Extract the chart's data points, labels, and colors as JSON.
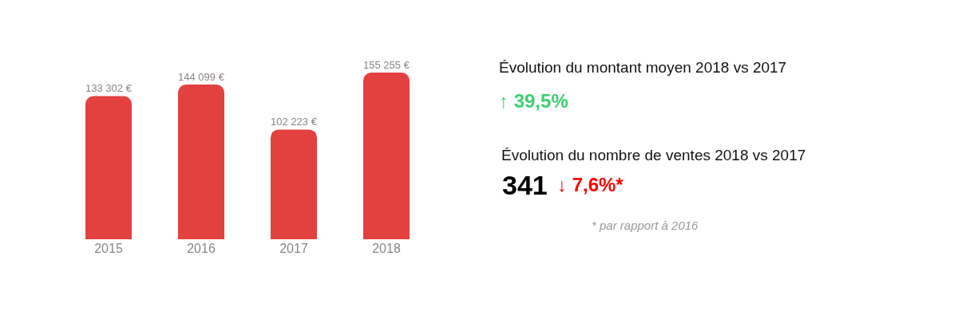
{
  "chart_data": {
    "type": "bar",
    "categories": [
      "2015",
      "2016",
      "2017",
      "2018"
    ],
    "values": [
      133302,
      144099,
      102223,
      155255
    ],
    "value_labels": [
      "133 302 €",
      "144 099 €",
      "102 223 €",
      "155 255 €"
    ],
    "color": "#e34040",
    "tick_labels": "x",
    "legend": false,
    "annotations": [
      "Évolution du montant moyen 2018 vs 2017",
      "↑ 39,5%",
      "Évolution du nombre de ventes 2018 vs 2017",
      "341",
      "↓ 7,6%*",
      "* par rapport à 2016"
    ]
  }
}
